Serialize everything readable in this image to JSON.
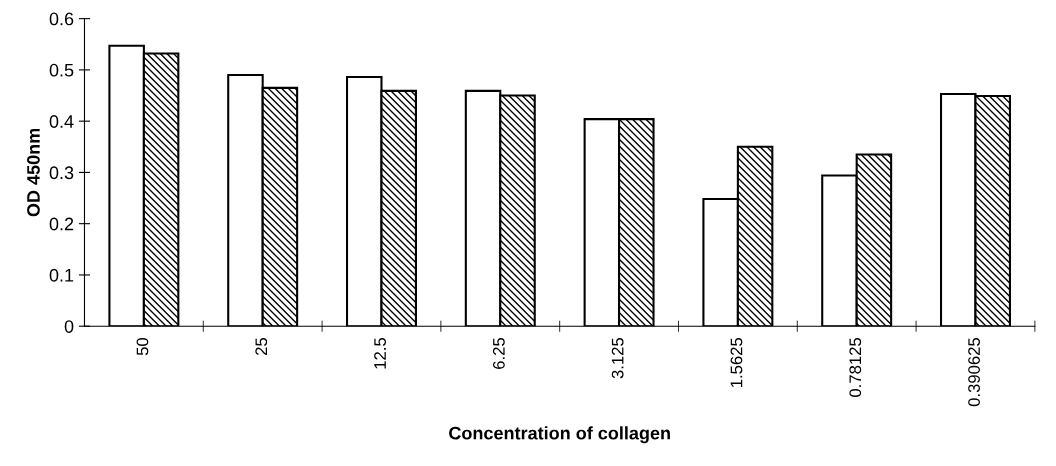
{
  "chart_data": {
    "type": "bar",
    "xlabel": "Concentration of collagen",
    "ylabel": "OD 450nm",
    "categories": [
      "50",
      "25",
      "12.5",
      "6.25",
      "3.125",
      "1.5625",
      "0.78125",
      "0.390625"
    ],
    "series": [
      {
        "color": "#ffffff",
        "values": [
          0.547,
          0.49,
          0.486,
          0.459,
          0.404,
          0.248,
          0.294,
          0.453
        ]
      },
      {
        "color": "#000000",
        "values": [
          0.532,
          0.465,
          0.459,
          0.45,
          0.404,
          0.35,
          0.335,
          0.449
        ]
      }
    ],
    "ylim": [
      0,
      0.6
    ],
    "yticks": [
      0,
      0.1,
      0.2,
      0.3,
      0.4,
      0.5,
      0.6
    ],
    "grid": false
  }
}
